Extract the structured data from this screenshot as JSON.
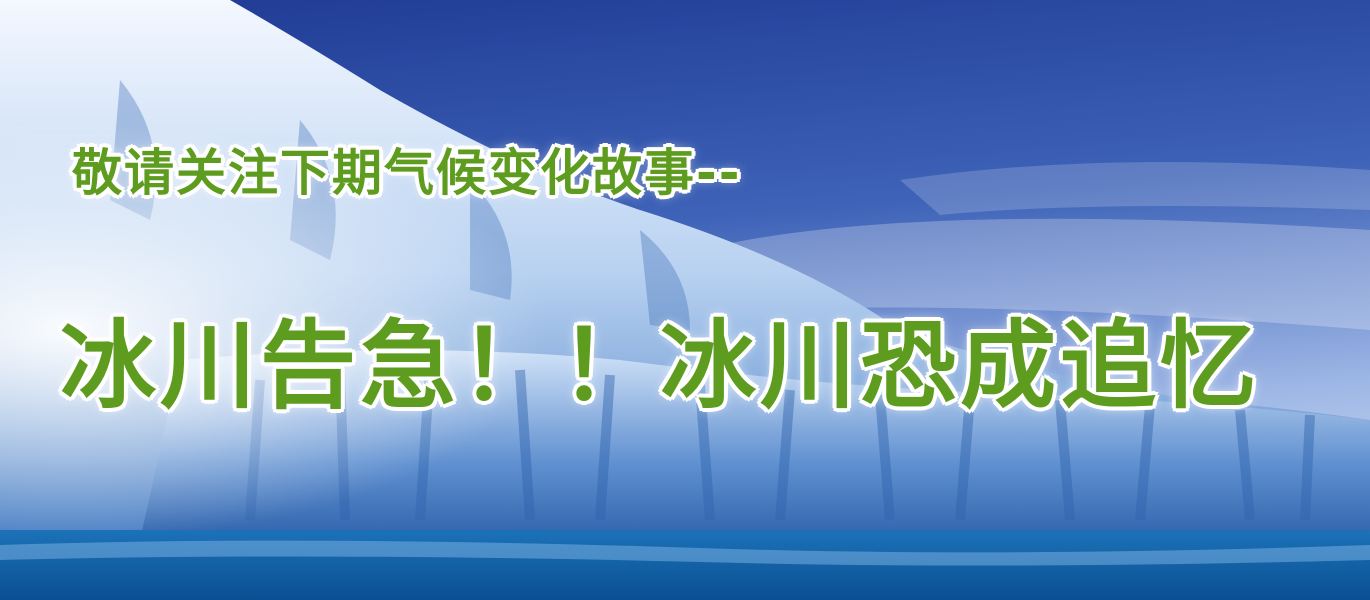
{
  "banner": {
    "subtitle": "敬请关注下期气候变化故事--",
    "title": "冰川告急！！冰川恐成追忆"
  },
  "colors": {
    "text_green": "#5e9c1f",
    "text_outline": "#ffffff",
    "sky_top": "#25409a",
    "sky_bottom": "#9fb8e6",
    "ice": "#eaf3ff",
    "sea": "#0d5fa6"
  }
}
